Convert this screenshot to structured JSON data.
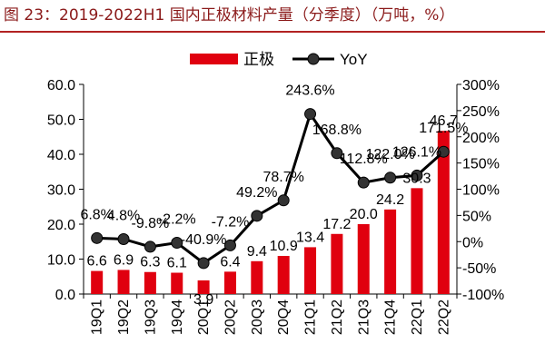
{
  "figure_title": "图 23：2019-2022H1 国内正极材料产量（分季度）（万吨，%）",
  "colors": {
    "bar": "#e0000f",
    "line": "#000000",
    "marker": "#333333",
    "title_text": "#8b1a1a",
    "title_rule": "#b22222"
  },
  "chart_data": {
    "type": "bar",
    "title": "图 23：2019-2022H1 国内正极材料产量（分季度）（万吨，%）",
    "categories": [
      "19Q1",
      "19Q2",
      "19Q3",
      "19Q4",
      "20Q1",
      "20Q2",
      "20Q3",
      "20Q4",
      "21Q1",
      "21Q2",
      "21Q3",
      "21Q4",
      "22Q1",
      "22Q2"
    ],
    "series": [
      {
        "name": "正极",
        "type": "bar",
        "axis": "left",
        "values": [
          6.6,
          6.9,
          6.3,
          6.1,
          3.9,
          6.4,
          9.4,
          10.9,
          13.4,
          17.2,
          20.0,
          24.2,
          30.3,
          46.7
        ],
        "labels": [
          "6.6",
          "6.9",
          "6.3",
          "6.1",
          "3.9",
          "6.4",
          "9.4",
          "10.9",
          "13.4",
          "17.2",
          "20.0",
          "24.2",
          "30.3",
          "46.7"
        ]
      },
      {
        "name": "YoY",
        "type": "line",
        "axis": "right",
        "values": [
          6.8,
          4.8,
          -9.8,
          -2.2,
          -40.9,
          -7.2,
          49.2,
          78.7,
          243.6,
          168.8,
          112.8,
          122.0,
          126.1,
          171.5
        ],
        "labels": [
          "6.8%",
          "4.8%",
          "-9.8%",
          "-2.2%",
          "-40.9%",
          "-7.2%",
          "49.2%",
          "78.7%",
          "243.6%",
          "168.8%",
          "112.8%",
          "122.0%",
          "126.1%",
          "171.5%"
        ]
      }
    ],
    "y_left": {
      "min": 0,
      "max": 60,
      "ticks": [
        0,
        10,
        20,
        30,
        40,
        50,
        60
      ],
      "tick_labels": [
        "0.0",
        "10.0",
        "20.0",
        "30.0",
        "40.0",
        "50.0",
        "60.0"
      ]
    },
    "y_right": {
      "min": -100,
      "max": 300,
      "ticks": [
        -100,
        -50,
        0,
        50,
        100,
        150,
        200,
        250,
        300
      ],
      "tick_labels": [
        "-100%",
        "-50%",
        "0%",
        "50%",
        "100%",
        "150%",
        "200%",
        "250%",
        "300%"
      ]
    },
    "legend": {
      "placement": "top",
      "entries": [
        {
          "name": "正极",
          "kind": "bar"
        },
        {
          "name": "YoY",
          "kind": "line"
        }
      ]
    },
    "grid": false
  }
}
